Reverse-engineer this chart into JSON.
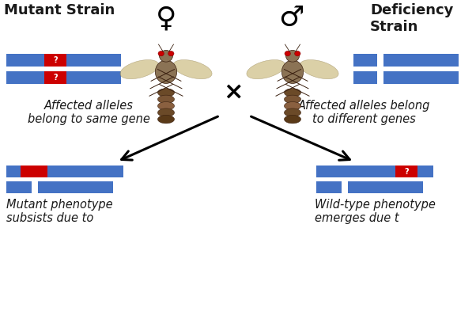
{
  "background_color": "#ffffff",
  "blue_color": "#4472C4",
  "red_color": "#CC0000",
  "white_color": "#FFFFFF",
  "text_color": "#1a1a1a",
  "title_left": "Mutant Strain",
  "title_right": "Deficiency\nStrain",
  "label_left_bottom": "Affected alleles\nbelong to same gene",
  "label_right_bottom": "Affected alleles belong\nto different genes",
  "label_ll": "Mutant phenotype\nsubsists due to",
  "label_rr": "Wild-type phenotype\nemerges due t",
  "female_symbol": "♀",
  "male_symbol": "♂",
  "cross_symbol": "×",
  "chr_blue": "#4472C4",
  "chr_red": "#CC0000",
  "fly_body": "#8B7355",
  "fly_abdomen": "#5a4030",
  "fly_wing": "#c8b878",
  "fly_eye": "#cc0000"
}
